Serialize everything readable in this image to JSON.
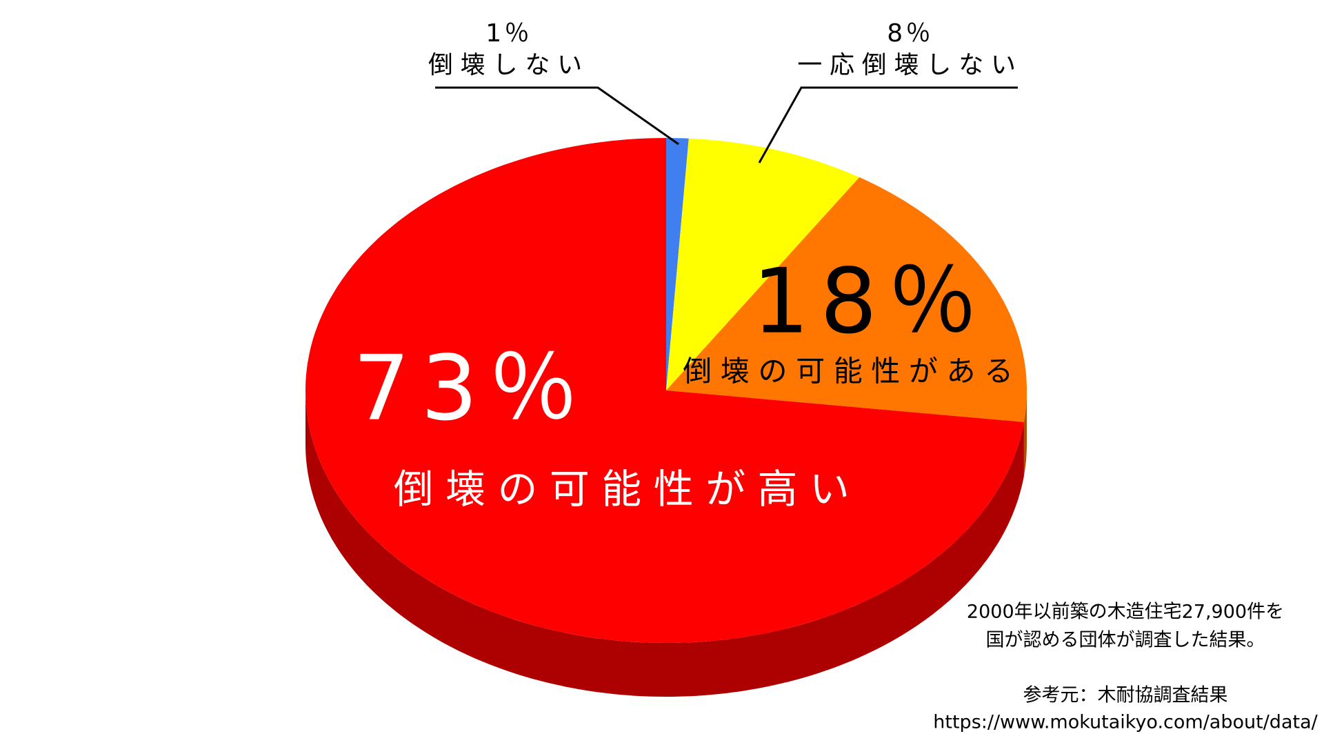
{
  "chart_data": {
    "type": "pie",
    "categories": [
      "倒壊しない",
      "一応倒壊しない",
      "倒壊の可能性がある",
      "倒壊の可能性が高い"
    ],
    "values": [
      1,
      8,
      18,
      73
    ],
    "value_labels": [
      "1％",
      "8％",
      "18％",
      "73％"
    ],
    "colors": [
      "#3f7fef",
      "#ffff00",
      "#ff7700",
      "#ff0000"
    ],
    "annotations": [
      "2000年以前築の木造住宅27,900件を",
      "国が認める団体が調査した結果。",
      "参考元：木耐協調査結果",
      "https://www.mokutaikyo.com/about/data/"
    ]
  }
}
